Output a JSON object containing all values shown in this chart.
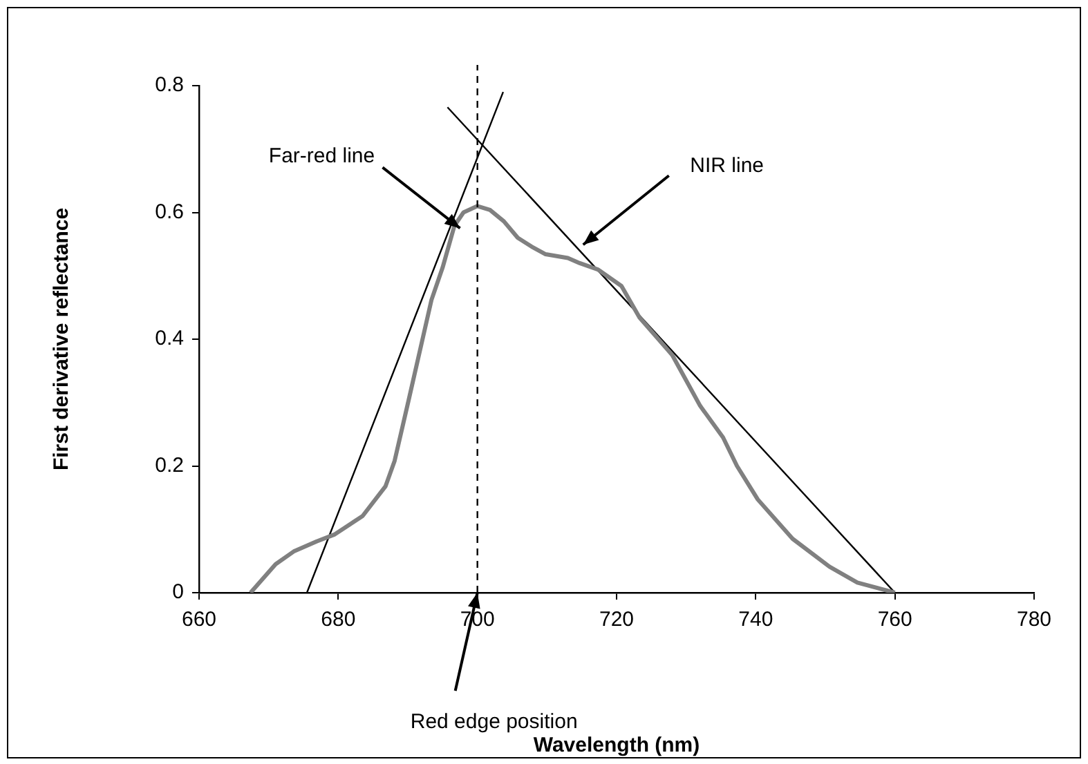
{
  "chart_data": {
    "type": "line",
    "xlabel": "Wavelength (nm)",
    "ylabel": "First derivative reflectance",
    "xlim": [
      660,
      780
    ],
    "xticks": [
      660,
      680,
      700,
      720,
      740,
      760,
      780
    ],
    "ylim": [
      0,
      0.8
    ],
    "yticks": [
      0,
      0.2,
      0.4,
      0.6,
      0.8
    ],
    "legend": false,
    "marker": "none",
    "series": [
      {
        "color": "#808080",
        "x": [
          667.4,
          671,
          673.6,
          676.9,
          679.5,
          683.5,
          686.8,
          688.1,
          690.1,
          693.4,
          695,
          696.7,
          698,
          700,
          701.8,
          703.8,
          705.8,
          707.8,
          709.8,
          713,
          714.7,
          717.3,
          720.7,
          723.3,
          728,
          732,
          735.3,
          737.3,
          740.3,
          745.3,
          750.6,
          754.6,
          760
        ],
        "values": [
          0,
          0.045,
          0.065,
          0.081,
          0.092,
          0.121,
          0.168,
          0.208,
          0.303,
          0.462,
          0.513,
          0.579,
          0.6,
          0.61,
          0.604,
          0.586,
          0.56,
          0.546,
          0.534,
          0.528,
          0.52,
          0.51,
          0.484,
          0.434,
          0.375,
          0.295,
          0.245,
          0.2,
          0.147,
          0.085,
          0.041,
          0.016,
          0
        ]
      },
      {
        "color": "#000000",
        "x": [
          675.5,
          703.7
        ],
        "values": [
          0,
          0.79
        ]
      },
      {
        "color": "#000000",
        "x": [
          695.7,
          760
        ],
        "values": [
          0.766,
          0
        ]
      }
    ],
    "ref_lines": [
      {
        "axis": "x",
        "value": 700,
        "color": "#000000",
        "line_style": "dashed"
      }
    ],
    "annotations": [
      {
        "text": "Far-red line",
        "x": 697.5,
        "y": 0.575
      },
      {
        "text": "NIR line",
        "x": 715.2,
        "y": 0.549
      },
      {
        "text": "Red edge position",
        "x": 700,
        "y": 0
      }
    ]
  }
}
